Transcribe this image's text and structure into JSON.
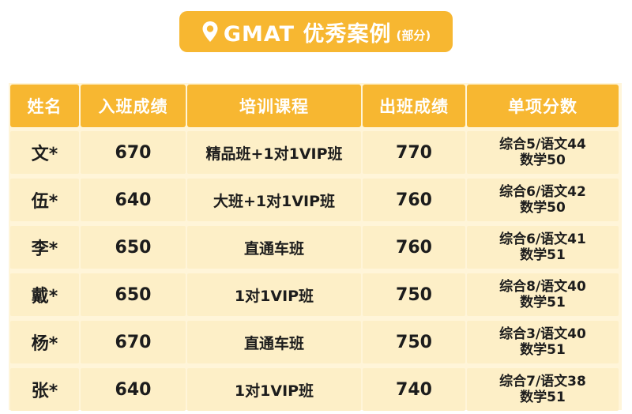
{
  "title": {
    "main": "GMAT 优秀案例",
    "sub": "(部分)"
  },
  "headers": [
    "姓名",
    "入班成绩",
    "培训课程",
    "出班成绩",
    "单项分数"
  ],
  "rows": [
    {
      "name": "文*",
      "entry": "670",
      "course": "精品班+1对1VIP班",
      "exit": "770",
      "scores_l1": "综合5/语文44",
      "scores_l2": "数学50"
    },
    {
      "name": "伍*",
      "entry": "640",
      "course": "大班+1对1VIP班",
      "exit": "760",
      "scores_l1": "综合6/语文42",
      "scores_l2": "数学50"
    },
    {
      "name": "李*",
      "entry": "650",
      "course": "直通车班",
      "exit": "760",
      "scores_l1": "综合6/语文41",
      "scores_l2": "数学51"
    },
    {
      "name": "戴*",
      "entry": "650",
      "course": "1对1VIP班",
      "exit": "750",
      "scores_l1": "综合8/语文40",
      "scores_l2": "数学51"
    },
    {
      "name": "杨*",
      "entry": "670",
      "course": "直通车班",
      "exit": "750",
      "scores_l1": "综合3/语文40",
      "scores_l2": "数学51"
    },
    {
      "name": "张*",
      "entry": "640",
      "course": "1对1VIP班",
      "exit": "740",
      "scores_l1": "综合7/语文38",
      "scores_l2": "数学51"
    }
  ],
  "colors": {
    "accent": "#f7b731",
    "row_bg": "#fdefc7",
    "table_bg": "#fff5d9"
  },
  "icons": {
    "title_icon": "location-pin-icon"
  }
}
